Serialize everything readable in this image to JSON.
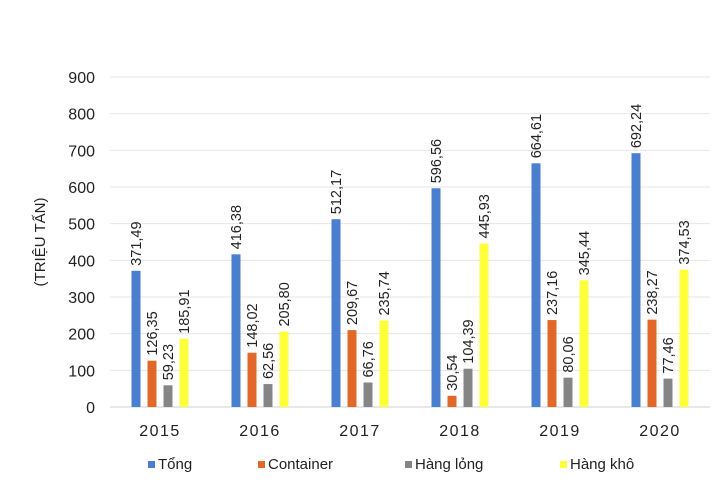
{
  "chart_data": {
    "type": "bar",
    "title": "",
    "xlabel": "",
    "ylabel": "(TRIỆU TẤN)",
    "ylim": [
      0,
      900
    ],
    "yticks": [
      0,
      100,
      200,
      300,
      400,
      500,
      600,
      700,
      800,
      900
    ],
    "grid": true,
    "legend_placement": "bottom",
    "categories": [
      "2015",
      "2016",
      "2017",
      "2018",
      "2019",
      "2020"
    ],
    "series": [
      {
        "name": "Tổng",
        "color": "#4a7fd0",
        "values": [
          371.49,
          416.38,
          512.17,
          596.56,
          664.61,
          692.24
        ],
        "labels": [
          "371,49",
          "416,38",
          "512,17",
          "596,56",
          "664,61",
          "692,24"
        ]
      },
      {
        "name": "Container",
        "color": "#e2682a",
        "values": [
          126.35,
          148.02,
          209.67,
          30.54,
          237.16,
          238.27
        ],
        "labels": [
          "126,35",
          "148,02",
          "209,67",
          "30,54",
          "237,16",
          "238,27"
        ]
      },
      {
        "name": "Hàng lỏng",
        "color": "#858585",
        "values": [
          59.23,
          62.56,
          66.76,
          104.39,
          80.06,
          77.46
        ],
        "labels": [
          "59,23",
          "62,56",
          "66,76",
          "104,39",
          "80,06",
          "77,46"
        ]
      },
      {
        "name": "Hàng khô",
        "color": "#ffff3c",
        "values": [
          185.91,
          205.8,
          235.74,
          445.93,
          345.44,
          374.53
        ],
        "labels": [
          "185,91",
          "205,80",
          "235,74",
          "445,93",
          "345,44",
          "374,53"
        ]
      }
    ]
  }
}
